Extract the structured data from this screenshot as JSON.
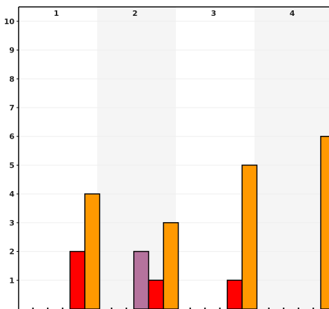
{
  "chart_data": {
    "type": "bar",
    "title": "",
    "xlabel": "",
    "ylabel": "",
    "categories": [
      "1",
      "2",
      "3",
      "4"
    ],
    "ylim": [
      0,
      10.5
    ],
    "yticks": [
      "1",
      "2",
      "3",
      "4",
      "5",
      "6",
      "7",
      "8",
      "9",
      "10"
    ],
    "grid": true,
    "legend": "none",
    "series": [
      {
        "color": "#000000",
        "values": [
          0,
          0,
          0,
          0
        ]
      },
      {
        "color": "#000000",
        "values": [
          0,
          0,
          0,
          0
        ]
      },
      {
        "color": "#b5739d",
        "values": [
          0,
          2,
          0,
          0
        ]
      },
      {
        "color": "#ff0000",
        "values": [
          2,
          1,
          1,
          0
        ]
      },
      {
        "color": "#ff9900",
        "values": [
          4,
          3,
          5,
          6
        ]
      }
    ],
    "band_colors": [
      "#ffffff",
      "#f5f5f5"
    ]
  }
}
